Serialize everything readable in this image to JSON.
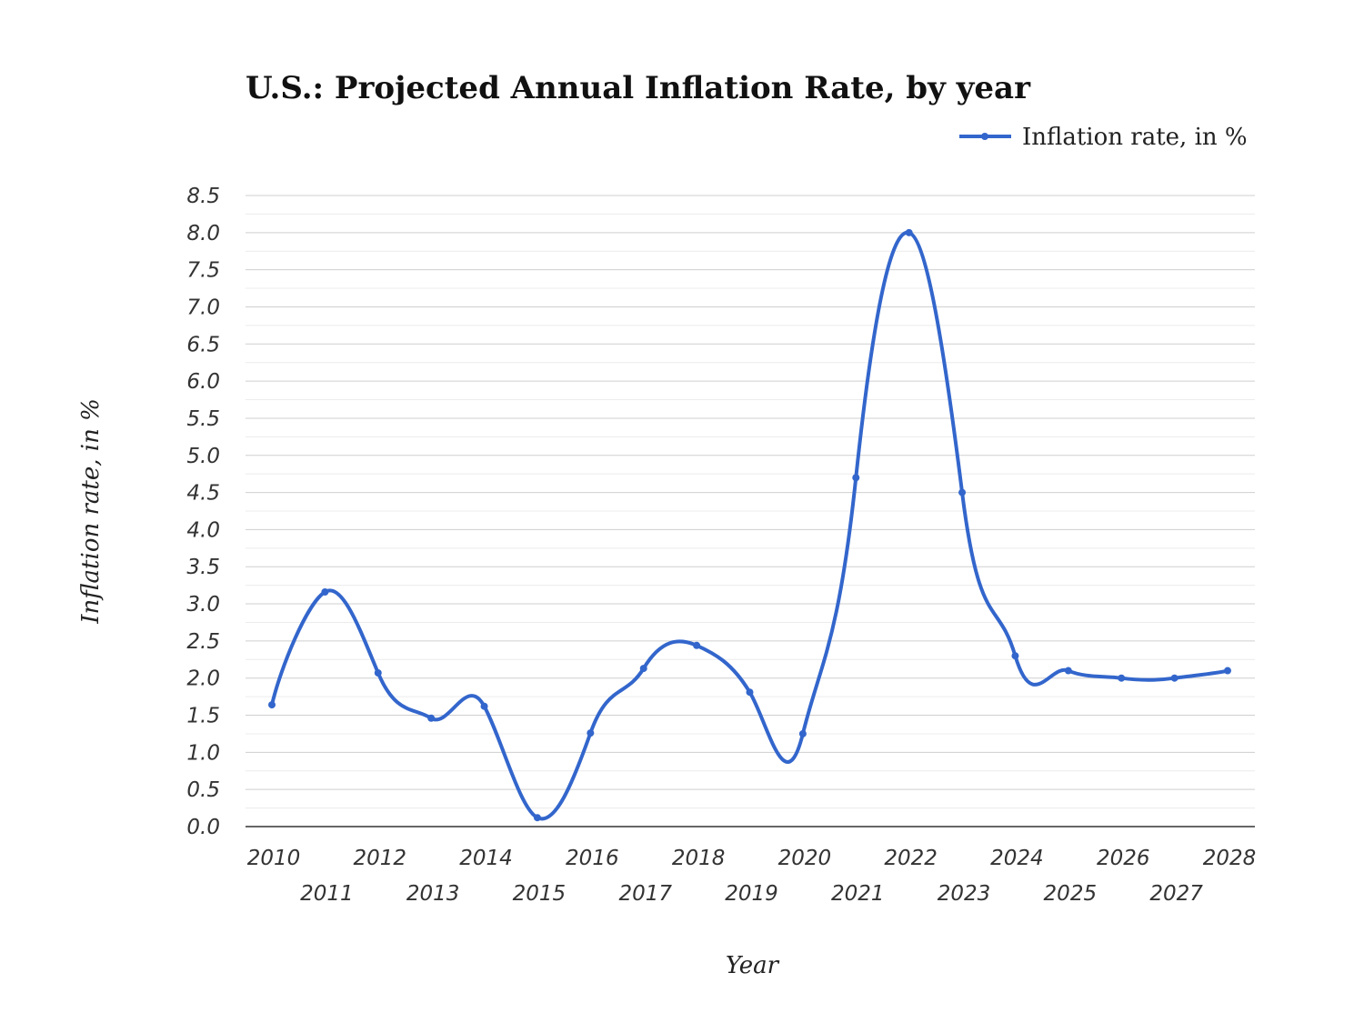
{
  "chart_data": {
    "type": "line",
    "title": "U.S.: Projected Annual Inflation Rate, by year",
    "xlabel": "Year",
    "ylabel": "Inflation rate, in %",
    "ylim": [
      0,
      8.5
    ],
    "yticks": [
      "0.0",
      "0.5",
      "1.0",
      "1.5",
      "2.0",
      "2.5",
      "3.0",
      "3.5",
      "4.0",
      "4.5",
      "5.0",
      "5.5",
      "6.0",
      "6.5",
      "7.0",
      "7.5",
      "8.0",
      "8.5"
    ],
    "grid": true,
    "legend_position": "top-right",
    "categories": [
      "2010",
      "2011",
      "2012",
      "2013",
      "2014",
      "2015",
      "2016",
      "2017",
      "2018",
      "2019",
      "2020",
      "2021",
      "2022",
      "2023",
      "2024",
      "2025",
      "2026",
      "2027",
      "2028"
    ],
    "series": [
      {
        "name": "Inflation rate, in %",
        "color": "#3366cc",
        "values": [
          1.64,
          3.16,
          2.07,
          1.46,
          1.62,
          0.12,
          1.26,
          2.13,
          2.44,
          1.81,
          1.25,
          4.7,
          8.0,
          4.5,
          2.3,
          2.1,
          2.0,
          2.0,
          2.1
        ]
      }
    ]
  }
}
